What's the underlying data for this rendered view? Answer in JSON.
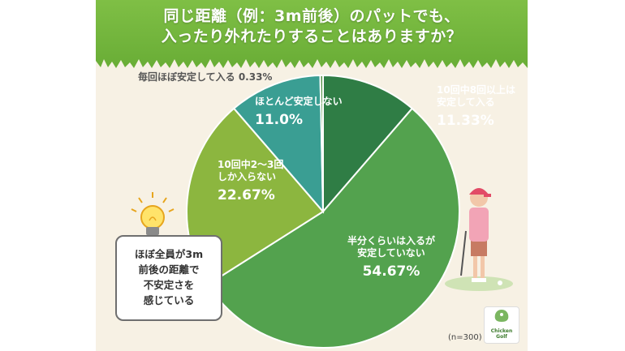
{
  "title": {
    "line1": "同じ距離（例：3m前後）のパットでも、",
    "line2": "入ったり外れたりすることはありますか？"
  },
  "chart_data": {
    "type": "pie",
    "segments": [
      {
        "label": "10回中8回以上は安定して入る",
        "label_lines": [
          "10回中8回以上は",
          "安定して入る"
        ],
        "value": 11.33,
        "display": "11.33%",
        "color": "#2f7d45"
      },
      {
        "label": "半分くらいは入るが安定していない",
        "label_lines": [
          "半分くらいは入るが",
          "安定していない"
        ],
        "value": 54.67,
        "display": "54.67%",
        "color": "#53a24e"
      },
      {
        "label": "10回中2〜3回しか入らない",
        "label_lines": [
          "10回中2〜3回",
          "しか入らない"
        ],
        "value": 22.67,
        "display": "22.67%",
        "color": "#8cb63f"
      },
      {
        "label": "ほとんど安定しない",
        "label_lines": [
          "ほとんど安定しない"
        ],
        "value": 11.0,
        "display": "11.0%",
        "color": "#3a9e93"
      },
      {
        "label": "毎回ほぼ安定して入る",
        "label_lines": [
          "毎回ほぼ安定して入る"
        ],
        "value": 0.33,
        "display": "0.33%",
        "color": "#4d8b3c"
      }
    ],
    "sample_size": "(n=300)"
  },
  "outlier_text": "毎回ほぼ安定して入る 0.33%",
  "bubble": {
    "lines": [
      "ほぼ全員が3m",
      "前後の距離で",
      "不安定さを",
      "感じている"
    ]
  },
  "logo": {
    "line1": "Chicken",
    "line2": "Golf"
  },
  "colors": {
    "grass": "#6fb23a",
    "background": "#f7f1e4"
  }
}
